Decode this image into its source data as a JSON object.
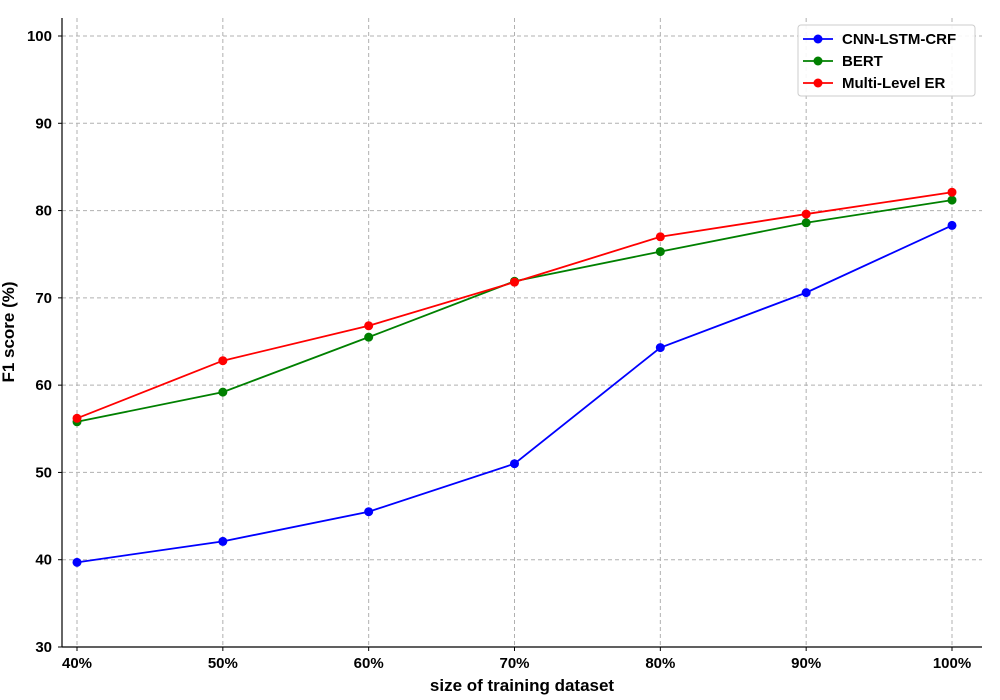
{
  "chart_data": {
    "type": "line",
    "title": "",
    "xlabel": "size of training dataset",
    "ylabel": "F1 score (%)",
    "categories": [
      "40%",
      "50%",
      "60%",
      "70%",
      "80%",
      "90%",
      "100%"
    ],
    "ylim": [
      30,
      102
    ],
    "yticks": [
      30,
      40,
      50,
      60,
      70,
      80,
      90,
      100
    ],
    "grid": true,
    "legend_position": "top-right",
    "series": [
      {
        "name": "CNN-LSTM-CRF",
        "color": "#0000ff",
        "marker": "circle",
        "values": [
          39.7,
          42.1,
          45.5,
          51.0,
          64.3,
          70.6,
          78.3
        ]
      },
      {
        "name": "BERT",
        "color": "#008000",
        "marker": "circle",
        "values": [
          55.8,
          59.2,
          65.5,
          71.9,
          75.3,
          78.6,
          81.2
        ]
      },
      {
        "name": "Multi-Level ER",
        "color": "#ff0000",
        "marker": "circle",
        "values": [
          56.2,
          62.8,
          66.8,
          71.8,
          77.0,
          79.6,
          82.1
        ]
      }
    ]
  }
}
